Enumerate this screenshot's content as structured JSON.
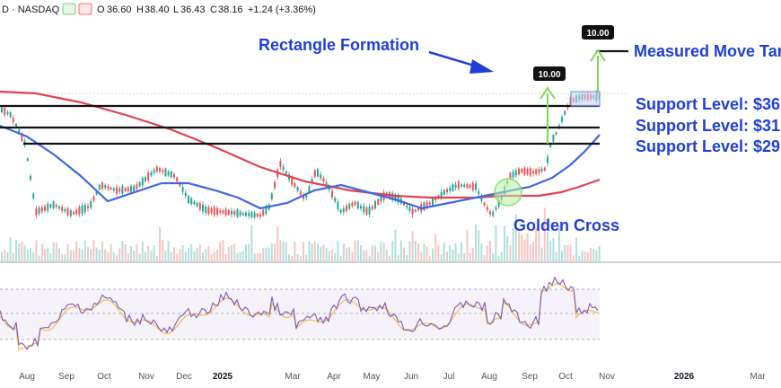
{
  "header": {
    "symbol_suffix": "D · NASDAQ",
    "open_label": "O",
    "open": "36.60",
    "high_label": "H",
    "high": "38.40",
    "low_label": "L",
    "low": "36.43",
    "close_label": "C",
    "close": "38.16",
    "change": "+1.24 (+3.36%)"
  },
  "annotations": {
    "rectangle": "Rectangle Formation",
    "golden_cross": "Golden Cross",
    "measured_move": "Measured Move Target",
    "support_1": "Support Level: $36",
    "support_2": "Support Level: $31",
    "support_3": "Support Level: $29",
    "move_label_1": "10.00",
    "move_label_2": "10.00"
  },
  "colors": {
    "annotation_blue": "#1f3fd6",
    "candle_up": "#26a69a",
    "candle_down": "#ef5350",
    "ma_fast": "#3f67e0",
    "ma_slow": "#e0434f",
    "rsi": "#7e57c2",
    "rsi_ma": "#f0c23a",
    "arrow_green": "#7ed957"
  },
  "icons": [
    "flag-icon",
    "eye-icon"
  ],
  "chart_data": {
    "type": "candlestick",
    "x_ticks": [
      "Aug",
      "Sep",
      "Oct",
      "Nov",
      "Dec",
      "2025",
      "Mar",
      "Apr",
      "May",
      "Jun",
      "Jul",
      "Aug",
      "Sep",
      "Oct",
      "Nov",
      "2026",
      "Mar"
    ],
    "bold_ticks": [
      "2025",
      "2026"
    ],
    "support_levels": [
      36,
      31,
      29
    ],
    "measured_move": 10.0,
    "moving_averages": [
      "fast",
      "slow"
    ],
    "rsi_panel": true,
    "grid": false
  }
}
